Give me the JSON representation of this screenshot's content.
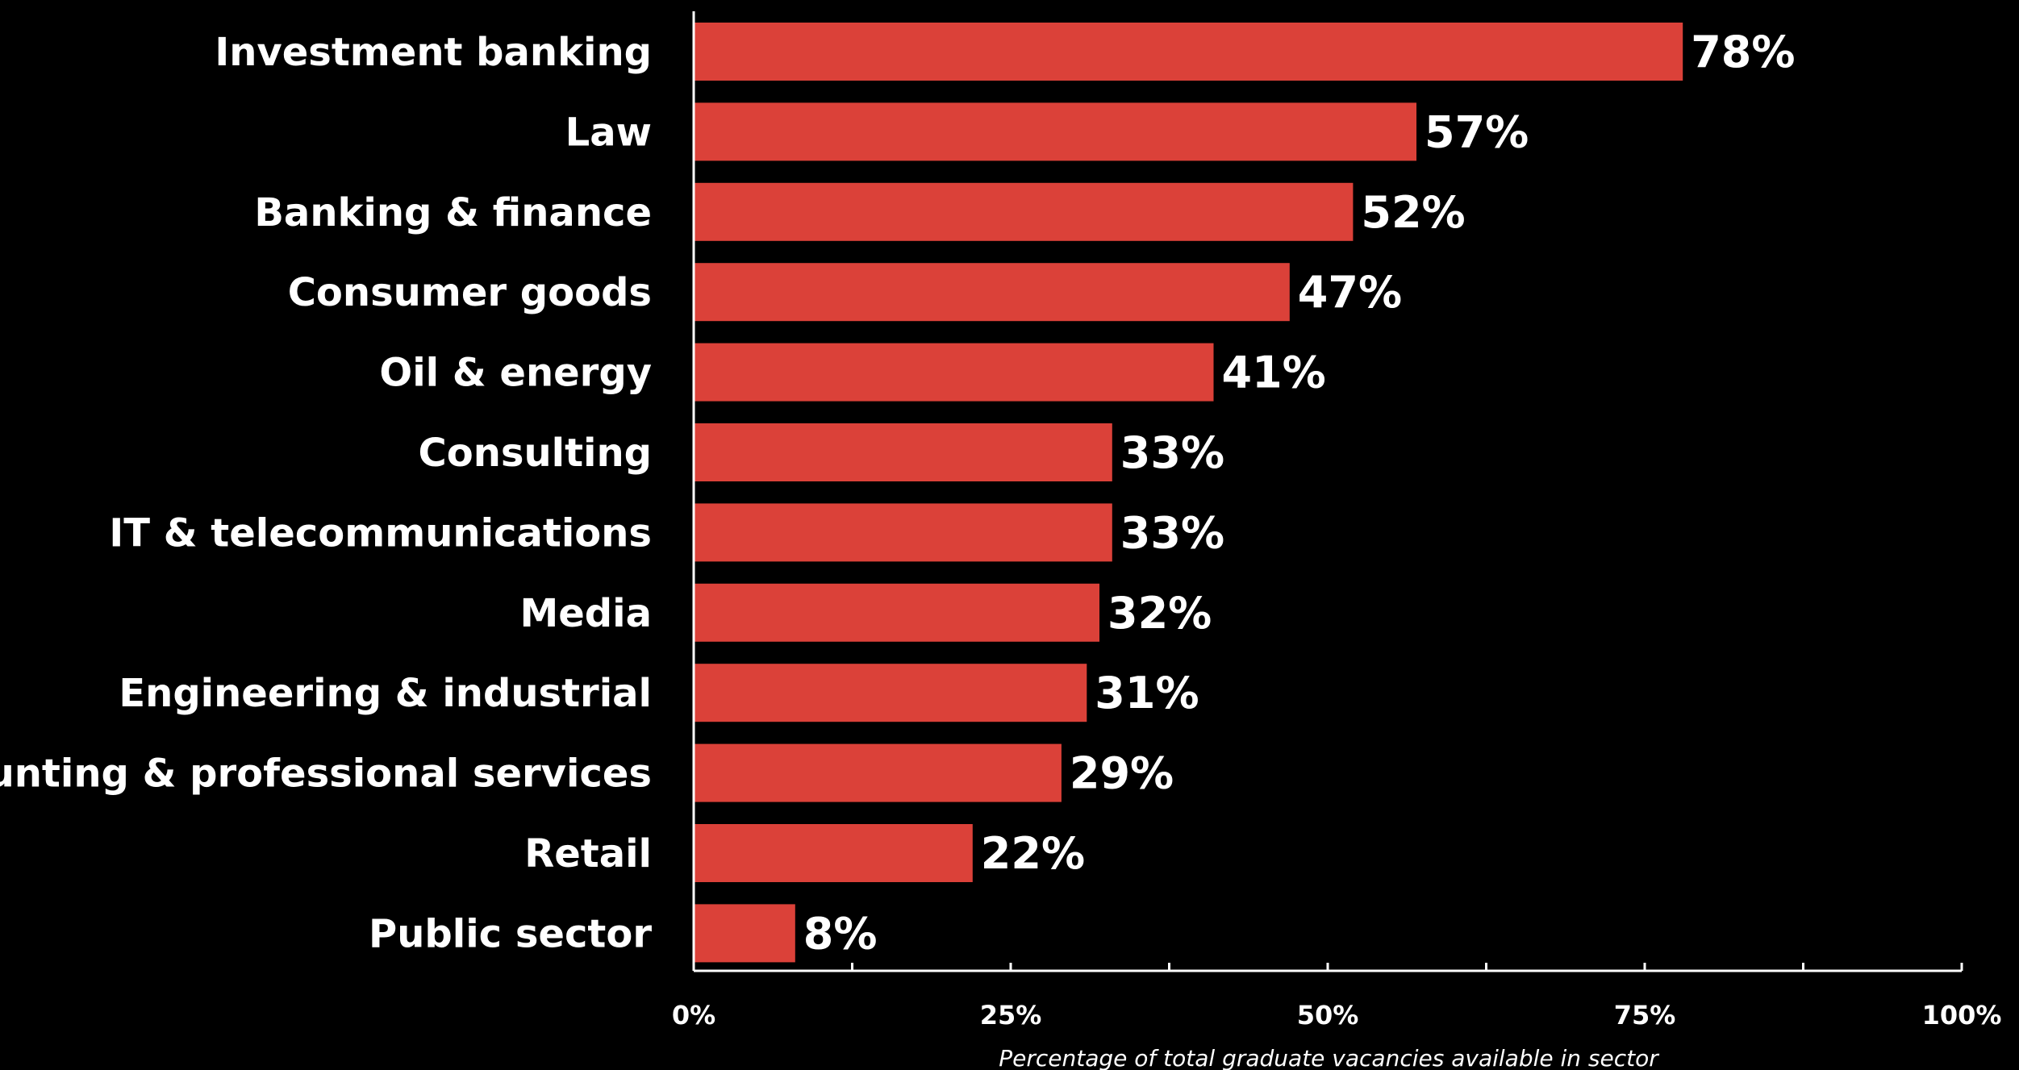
{
  "chart_data": {
    "type": "bar",
    "orientation": "horizontal",
    "categories": [
      "Investment banking",
      "Law",
      "Banking & finance",
      "Consumer goods",
      "Oil & energy",
      "Consulting",
      "IT & telecommunications",
      "Media",
      "Engineering & industrial",
      "Accounting & professional services",
      "Retail",
      "Public sector"
    ],
    "values": [
      78,
      57,
      52,
      47,
      41,
      33,
      33,
      32,
      31,
      29,
      22,
      8
    ],
    "value_labels": [
      "78%",
      "57%",
      "52%",
      "47%",
      "41%",
      "33%",
      "33%",
      "32%",
      "31%",
      "29%",
      "22%",
      "8%"
    ],
    "xlim": [
      0,
      100
    ],
    "x_ticks": [
      0,
      25,
      50,
      75,
      100
    ],
    "x_tick_labels": [
      "0%",
      "25%",
      "50%",
      "75%",
      "100%"
    ],
    "xlabel": "Percentage of total graduate vacancies available in sector",
    "ylabel": "",
    "title": "",
    "grid": false,
    "bar_color": "#db4139",
    "background_color": "#000000",
    "text_color": "#ffffff"
  }
}
